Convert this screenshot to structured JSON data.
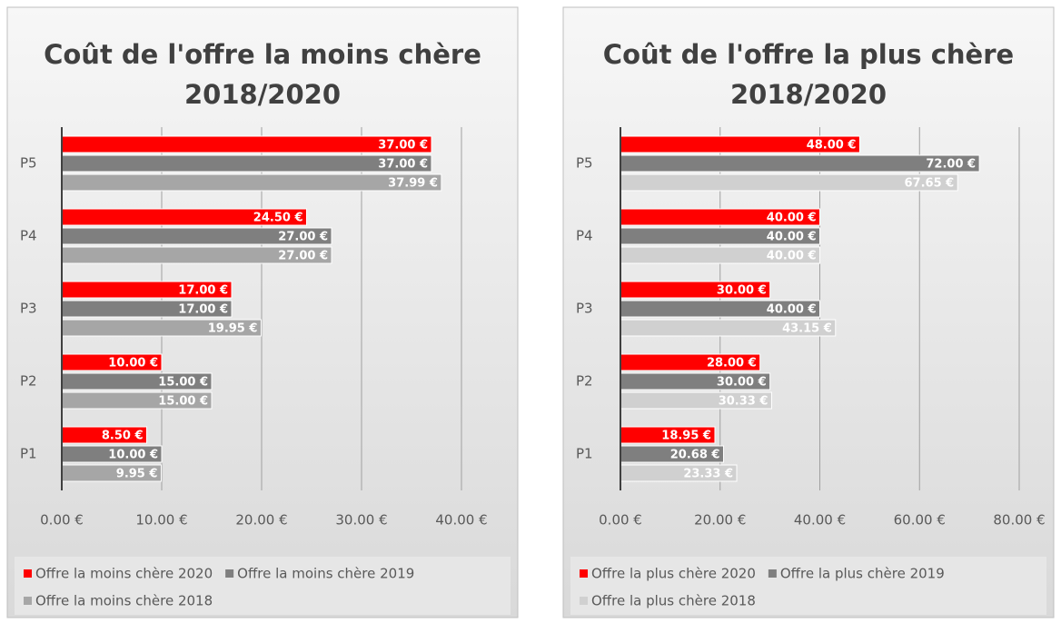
{
  "chart_data": [
    {
      "type": "bar",
      "orientation": "horizontal",
      "title": "Coût de l'offre la moins chère 2018/2020",
      "categories": [
        "P1",
        "P2",
        "P3",
        "P4",
        "P5"
      ],
      "series": [
        {
          "name": "Offre la moins chère 2020",
          "color": "#ff0000",
          "values": [
            8.5,
            10,
            17,
            24.5,
            37
          ],
          "value_labels": [
            "8.50 €",
            "10.00 €",
            "17.00 €",
            "24.50 €",
            "37.00 €"
          ]
        },
        {
          "name": "Offre la moins chère 2019",
          "color": "#7f7f7f",
          "values": [
            10,
            15,
            17,
            27,
            37
          ],
          "value_labels": [
            "10.00 €",
            "15.00 €",
            "17.00 €",
            "27.00 €",
            "37.00 €"
          ]
        },
        {
          "name": "Offre la moins chère 2018",
          "color": "#a6a6a6",
          "values": [
            9.95,
            15,
            19.95,
            27,
            37.99
          ],
          "value_labels": [
            "9.95 €",
            "15.00 €",
            "19.95 €",
            "27.00 €",
            "37.99 €"
          ]
        }
      ],
      "xlim": [
        0,
        40
      ],
      "xticks": [
        {
          "value": 0,
          "label": "0.00 €"
        },
        {
          "value": 10,
          "label": "10.00 €"
        },
        {
          "value": 20,
          "label": "20.00 €"
        },
        {
          "value": 30,
          "label": "30.00 €"
        },
        {
          "value": 40,
          "label": "40.00 €"
        }
      ],
      "grid": true,
      "legend": "bottom"
    },
    {
      "type": "bar",
      "orientation": "horizontal",
      "title": "Coût de l'offre la plus chère 2018/2020",
      "categories": [
        "P1",
        "P2",
        "P3",
        "P4",
        "P5"
      ],
      "series": [
        {
          "name": "Offre la plus chère 2020",
          "color": "#ff0000",
          "values": [
            18.95,
            28,
            30,
            40,
            48
          ],
          "value_labels": [
            "18.95 €",
            "28.00 €",
            "30.00 €",
            "40.00 €",
            "48.00 €"
          ]
        },
        {
          "name": "Offre la plus chère 2019",
          "color": "#7f7f7f",
          "values": [
            20.68,
            30,
            40,
            40,
            72
          ],
          "value_labels": [
            "20.68 €",
            "30.00 €",
            "40.00 €",
            "40.00 €",
            "72.00 €"
          ]
        },
        {
          "name": "Offre la plus chère 2018",
          "color": "#d0d0d0",
          "values": [
            23.33,
            30.33,
            43.15,
            40,
            67.65
          ],
          "value_labels": [
            "23.33 €",
            "30.33 €",
            "43.15 €",
            "40.00 €",
            "67.65 €"
          ]
        }
      ],
      "xlim": [
        0,
        80
      ],
      "xticks": [
        {
          "value": 0,
          "label": "0.00 €"
        },
        {
          "value": 20,
          "label": "20.00 €"
        },
        {
          "value": 40,
          "label": "40.00 €"
        },
        {
          "value": 60,
          "label": "60.00 €"
        },
        {
          "value": 80,
          "label": "80.00 €"
        }
      ],
      "grid": true,
      "legend": "bottom"
    }
  ]
}
